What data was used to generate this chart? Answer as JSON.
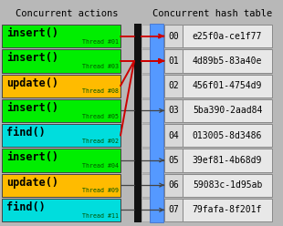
{
  "title_left": "Concurrent actions",
  "title_right": "Concurrent hash table",
  "bg_color": "#b8b8b8",
  "black_divider": "#111111",
  "left_actions": [
    {
      "label": "insert()",
      "thread": "Thread #01",
      "color": "#00ee00",
      "red": true
    },
    {
      "label": "insert()",
      "thread": "Thread #03",
      "color": "#00ee00",
      "red": true
    },
    {
      "label": "update()",
      "thread": "Thread #08",
      "color": "#ffbb00",
      "red": true
    },
    {
      "label": "insert()",
      "thread": "Thread #05",
      "color": "#00ee00",
      "red": false
    },
    {
      "label": "find()",
      "thread": "Thread #02",
      "color": "#00dddd",
      "red": true
    },
    {
      "label": "insert()",
      "thread": "Thread #04",
      "color": "#00ee00",
      "red": false
    },
    {
      "label": "update()",
      "thread": "Thread #09",
      "color": "#ffbb00",
      "red": false
    },
    {
      "label": "find()",
      "thread": "Thread #11",
      "color": "#00dddd",
      "red": false
    }
  ],
  "hash_slots": [
    {
      "index": "00",
      "value": "e25f0a-ce1f77"
    },
    {
      "index": "01",
      "value": "4d89b5-83a40e"
    },
    {
      "index": "02",
      "value": "456f01-4754d9"
    },
    {
      "index": "03",
      "value": "5ba390-2aad84"
    },
    {
      "index": "04",
      "value": "013005-8d3486"
    },
    {
      "index": "05",
      "value": "39ef81-4b68d9"
    },
    {
      "index": "06",
      "value": "59083c-1d95ab"
    },
    {
      "index": "07",
      "value": "79fafa-8f201f"
    }
  ],
  "connections": [
    {
      "from": 0,
      "to": 0,
      "red": true
    },
    {
      "from": 1,
      "to": 1,
      "red": true
    },
    {
      "from": 2,
      "to": 1,
      "red": true
    },
    {
      "from": 3,
      "to": 3,
      "red": false
    },
    {
      "from": 4,
      "to": 1,
      "red": true
    },
    {
      "from": 5,
      "to": 5,
      "red": false
    },
    {
      "from": 6,
      "to": 6,
      "red": false
    },
    {
      "from": 7,
      "to": 7,
      "red": false
    }
  ]
}
